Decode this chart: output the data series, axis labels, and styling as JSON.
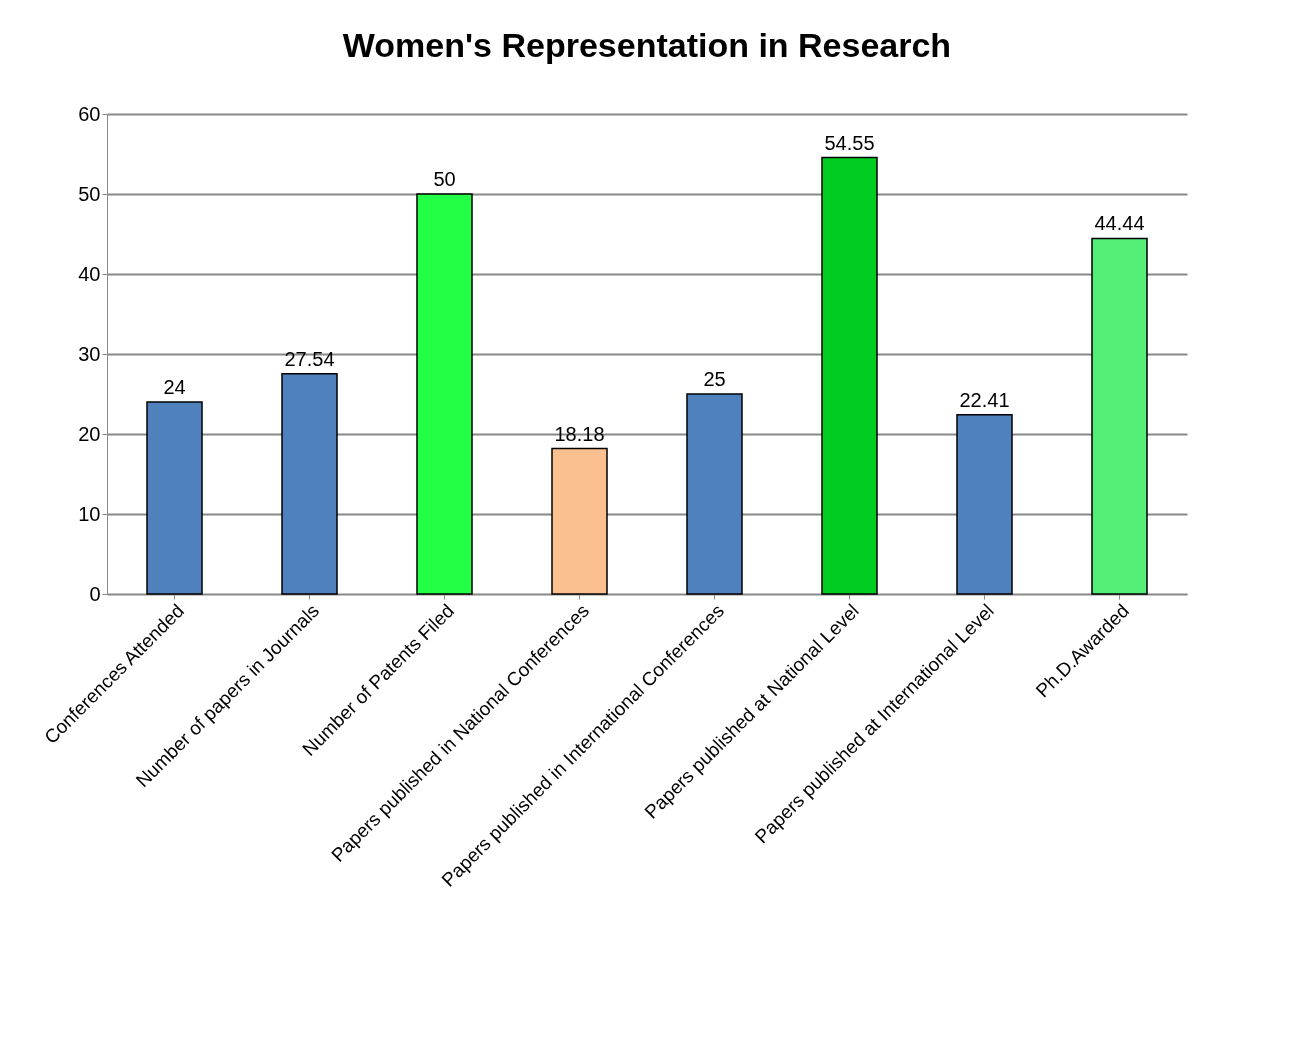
{
  "chart_data": {
    "type": "bar",
    "title": "Women's Representation in Research",
    "categories": [
      "Conferences Attended",
      "Number of papers in Journals",
      "Number of Patents Filed",
      "Papers published in National Conferences",
      "Papers published in International Conferences",
      "Papers published at National Level",
      "Papers published at International Level",
      "Ph.D.Awarded"
    ],
    "values": [
      24,
      27.54,
      50,
      18.18,
      25,
      54.55,
      22.41,
      44.44
    ],
    "colors": [
      "#4f81bd",
      "#4f81bd",
      "#22ff44",
      "#fac090",
      "#4f81bd",
      "#00cc22",
      "#4f81bd",
      "#55ee77"
    ],
    "ylim": [
      0,
      60
    ],
    "yticks": [
      0,
      10,
      20,
      30,
      40,
      50,
      60
    ],
    "grid": "y",
    "data_labels": true
  }
}
